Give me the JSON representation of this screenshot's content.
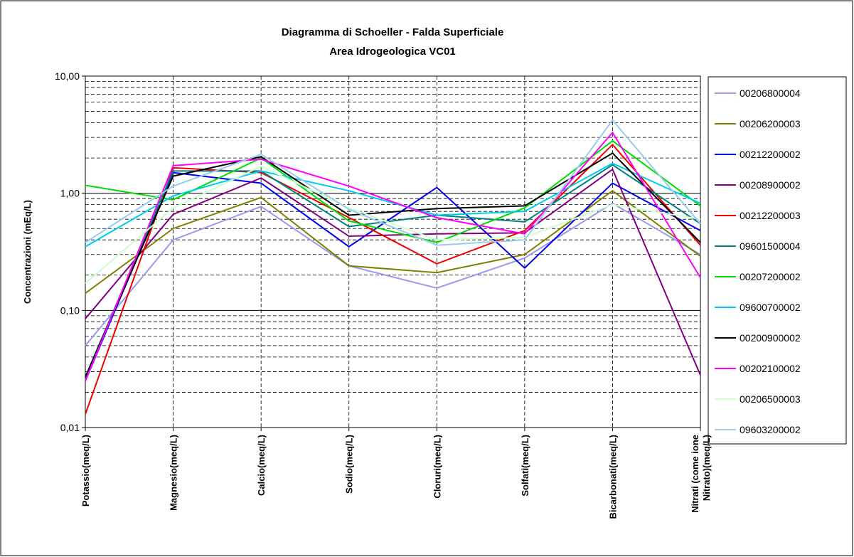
{
  "chart_data": {
    "type": "line",
    "title": "Diagramma di Schoeller - Falda Superficiale",
    "subtitle": "Area Idrogeologica VC01",
    "y_label": "Concentrazioni (mEq/L)",
    "log_scale": true,
    "grid": true,
    "legend": "right",
    "categories": [
      "Potassio(meq/L)",
      "Magnesio(meq/L)",
      "Calcio(meq/L)",
      "Sodio(meq/L)",
      "Cloruri(meq/L)",
      "Solfati(meq/L)",
      "Bicarbonati(meq/L)",
      "Nitrati (come ione\nNitrato)(meq/L)"
    ],
    "ylim": [
      0.01,
      10
    ],
    "yticks": [
      {
        "value": 0.01,
        "label": "0,01"
      },
      {
        "value": 0.1,
        "label": "0,10"
      },
      {
        "value": 1,
        "label": "1,00"
      },
      {
        "value": 10,
        "label": "10,00"
      }
    ],
    "minor_yticks": [
      0.02,
      0.03,
      0.04,
      0.05,
      0.06,
      0.07,
      0.08,
      0.09,
      0.2,
      0.3,
      0.4,
      0.5,
      0.6,
      0.7,
      0.8,
      0.9,
      2,
      3,
      4,
      5,
      6,
      7,
      8,
      9
    ],
    "series": [
      {
        "name": "00206800004",
        "color": "#9999ee",
        "values": [
          0.05,
          0.4,
          0.77,
          0.24,
          0.155,
          0.28,
          0.82,
          0.3
        ]
      },
      {
        "name": "00206200003",
        "color": "#808000",
        "values": [
          0.14,
          0.5,
          0.92,
          0.24,
          0.21,
          0.3,
          1.05,
          0.29
        ]
      },
      {
        "name": "00212200002",
        "color": "#0000ee",
        "values": [
          0.025,
          1.5,
          1.22,
          0.35,
          1.12,
          0.23,
          1.22,
          0.48
        ]
      },
      {
        "name": "00208900002",
        "color": "#800080",
        "values": [
          0.085,
          0.66,
          1.35,
          0.43,
          0.45,
          0.46,
          1.6,
          0.028
        ]
      },
      {
        "name": "00212200003",
        "color": "#ee0000",
        "values": [
          0.013,
          1.65,
          1.5,
          0.62,
          0.25,
          0.48,
          2.6,
          0.36
        ]
      },
      {
        "name": "09601500004",
        "color": "#008080",
        "values": [
          0.027,
          1.55,
          1.55,
          0.52,
          0.65,
          0.57,
          1.75,
          0.55
        ]
      },
      {
        "name": "00207200002",
        "color": "#00dd00",
        "values": [
          1.17,
          0.88,
          2.0,
          0.58,
          0.38,
          0.75,
          2.8,
          0.78
        ]
      },
      {
        "name": "09600700002",
        "color": "#00ccee",
        "values": [
          0.35,
          0.95,
          1.55,
          1.05,
          0.65,
          0.7,
          1.8,
          0.82
        ]
      },
      {
        "name": "00200900002",
        "color": "#000000",
        "values": [
          0.027,
          1.4,
          2.05,
          0.65,
          0.74,
          0.78,
          2.2,
          0.38
        ]
      },
      {
        "name": "00202100002",
        "color": "#ff00ff",
        "values": [
          0.025,
          1.72,
          1.95,
          1.15,
          0.62,
          0.45,
          3.3,
          0.19
        ]
      },
      {
        "name": "00206500003",
        "color": "#ccffcc",
        "values": [
          0.17,
          0.75,
          1.7,
          0.75,
          0.4,
          0.42,
          0.8,
          0.6
        ]
      },
      {
        "name": "09603200002",
        "color": "#99ccee",
        "values": [
          0.38,
          1.15,
          2.15,
          0.73,
          0.36,
          0.4,
          4.2,
          0.55
        ]
      }
    ]
  }
}
